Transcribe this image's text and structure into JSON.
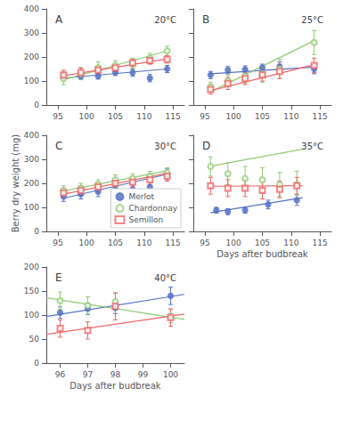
{
  "chart_data": [
    {
      "type": "scatter",
      "title": "A",
      "subtitle": "20°C",
      "xlim": [
        93,
        117
      ],
      "ylim": [
        0,
        400
      ],
      "xticks": [
        95,
        100,
        105,
        110,
        115
      ],
      "yticks": [
        0,
        100,
        200,
        300,
        400
      ],
      "grid": false,
      "series": [
        {
          "name": "Merlot",
          "marker": "filled circle",
          "x": [
            96,
            99,
            102,
            105,
            108,
            111,
            114
          ],
          "values": [
            120,
            120,
            120,
            135,
            135,
            112,
            150
          ],
          "yerr": [
            15,
            12,
            12,
            12,
            15,
            15,
            15
          ],
          "fit": {
            "x": [
              96,
              114
            ],
            "values": [
              112,
              150
            ]
          }
        },
        {
          "name": "Chardonnay",
          "marker": "open circle",
          "x": [
            96,
            99,
            102,
            105,
            108,
            111,
            114
          ],
          "values": [
            110,
            130,
            155,
            165,
            175,
            195,
            225
          ],
          "yerr": [
            25,
            25,
            25,
            20,
            20,
            20,
            20
          ],
          "fit": {
            "x": [
              96,
              114
            ],
            "values": [
              105,
              225
            ]
          }
        },
        {
          "name": "Semillon",
          "marker": "open square",
          "x": [
            96,
            99,
            102,
            105,
            108,
            111,
            114
          ],
          "values": [
            125,
            135,
            145,
            155,
            175,
            185,
            190
          ],
          "yerr": [
            20,
            20,
            15,
            15,
            15,
            15,
            15
          ],
          "fit": {
            "x": [
              96,
              114
            ],
            "values": [
              122,
              192
            ]
          }
        }
      ]
    },
    {
      "type": "scatter",
      "title": "B",
      "subtitle": "25°C",
      "xlim": [
        93,
        117
      ],
      "ylim": [
        0,
        400
      ],
      "xticks": [
        95,
        100,
        105,
        110,
        115
      ],
      "yticks": [
        0,
        100,
        200,
        300,
        400
      ],
      "grid": false,
      "tick_labels": "x",
      "series": [
        {
          "name": "Merlot",
          "marker": "filled circle",
          "x": [
            96,
            99,
            102,
            105,
            108,
            114
          ],
          "values": [
            125,
            145,
            148,
            155,
            160,
            150
          ],
          "yerr": [
            15,
            15,
            15,
            15,
            20,
            20
          ],
          "fit": {
            "x": [
              96,
              114
            ],
            "values": [
              130,
              158
            ]
          }
        },
        {
          "name": "Chardonnay",
          "marker": "open circle",
          "x": [
            96,
            99,
            102,
            105,
            108,
            114
          ],
          "values": [
            75,
            100,
            120,
            130,
            150,
            260
          ],
          "yerr": [
            20,
            25,
            30,
            35,
            40,
            50
          ],
          "fit": {
            "x": [
              96,
              114
            ],
            "values": [
              55,
              268
            ]
          }
        },
        {
          "name": "Semillon",
          "marker": "open square",
          "x": [
            96,
            99,
            102,
            105,
            108,
            114
          ],
          "values": [
            65,
            90,
            110,
            125,
            140,
            165
          ],
          "yerr": [
            20,
            25,
            25,
            25,
            30,
            30
          ],
          "fit": {
            "x": [
              96,
              114
            ],
            "values": [
              60,
              168
            ]
          }
        }
      ]
    },
    {
      "type": "scatter",
      "title": "C",
      "subtitle": "30°C",
      "ylabel": "Berry dry weight (mg)",
      "xlim": [
        93,
        117
      ],
      "ylim": [
        0,
        400
      ],
      "xticks": [
        95,
        100,
        105,
        110,
        115
      ],
      "yticks": [
        0,
        100,
        200,
        300,
        400
      ],
      "grid": false,
      "legend": "lower right",
      "series": [
        {
          "name": "Merlot",
          "marker": "filled circle",
          "x": [
            96,
            99,
            102,
            105,
            108,
            111,
            114
          ],
          "values": [
            145,
            155,
            165,
            175,
            175,
            185,
            235
          ],
          "yerr": [
            20,
            20,
            20,
            20,
            20,
            25,
            25
          ],
          "fit": {
            "x": [
              96,
              114
            ],
            "values": [
              138,
              238
            ]
          }
        },
        {
          "name": "Chardonnay",
          "marker": "open circle",
          "x": [
            96,
            99,
            102,
            105,
            108,
            111,
            114
          ],
          "values": [
            170,
            180,
            195,
            215,
            220,
            230,
            245
          ],
          "yerr": [
            20,
            20,
            20,
            20,
            20,
            20,
            20
          ],
          "fit": {
            "x": [
              96,
              114
            ],
            "values": [
              168,
              252
            ]
          }
        },
        {
          "name": "Semillon",
          "marker": "open square",
          "x": [
            96,
            99,
            102,
            105,
            108,
            111,
            114
          ],
          "values": [
            160,
            170,
            185,
            200,
            205,
            215,
            230
          ],
          "yerr": [
            20,
            20,
            20,
            20,
            20,
            20,
            20
          ],
          "fit": {
            "x": [
              96,
              114
            ],
            "values": [
              155,
              242
            ]
          }
        }
      ]
    },
    {
      "type": "scatter",
      "title": "D",
      "subtitle": "35°C",
      "xlabel": "Days after budbreak",
      "xlim": [
        93,
        117
      ],
      "ylim": [
        0,
        400
      ],
      "xticks": [
        95,
        100,
        105,
        110,
        115
      ],
      "yticks": [
        0,
        100,
        200,
        300,
        400
      ],
      "grid": false,
      "tick_labels": "x",
      "series": [
        {
          "name": "Merlot",
          "marker": "filled circle",
          "x": [
            97,
            99,
            102,
            106,
            111
          ],
          "values": [
            88,
            82,
            88,
            112,
            130
          ],
          "yerr": [
            12,
            12,
            12,
            18,
            22
          ],
          "fit": {
            "x": [
              96,
              112
            ],
            "values": [
              78,
              140
            ]
          }
        },
        {
          "name": "Chardonnay",
          "marker": "open circle",
          "x": [
            96,
            99,
            102,
            105,
            108,
            111
          ],
          "values": [
            270,
            240,
            220,
            215,
            195,
            195
          ],
          "yerr": [
            40,
            45,
            50,
            50,
            50,
            55
          ],
          "fit": {
            "x": [
              96,
              112
            ],
            "values": [
              272,
              342
            ]
          }
        },
        {
          "name": "Semillon",
          "marker": "open square",
          "x": [
            96,
            99,
            102,
            105,
            108,
            111
          ],
          "values": [
            190,
            180,
            180,
            170,
            175,
            190
          ],
          "yerr": [
            35,
            35,
            35,
            35,
            35,
            35
          ],
          "fit": {
            "x": [
              96,
              112
            ],
            "values": [
              188,
              190
            ]
          }
        }
      ]
    },
    {
      "type": "scatter",
      "title": "E",
      "subtitle": "40°C",
      "xlabel": "Days after budbreak",
      "xlim": [
        95.5,
        100.5
      ],
      "ylim": [
        0,
        200
      ],
      "xticks": [
        96,
        97,
        98,
        99,
        100
      ],
      "yticks": [
        0,
        50,
        100,
        150,
        200
      ],
      "grid": false,
      "series": [
        {
          "name": "Merlot",
          "marker": "filled circle",
          "x": [
            96,
            97,
            98,
            100
          ],
          "values": [
            105,
            113,
            115,
            140
          ],
          "yerr": [
            12,
            12,
            12,
            18
          ],
          "fit": {
            "x": [
              95.5,
              100.5
            ],
            "values": [
              97,
              143
            ]
          }
        },
        {
          "name": "Chardonnay",
          "marker": "open circle",
          "x": [
            96,
            97,
            98,
            100
          ],
          "values": [
            130,
            120,
            128,
            98
          ],
          "yerr": [
            18,
            18,
            18,
            14
          ],
          "fit": {
            "x": [
              95.5,
              100.5
            ],
            "values": [
              136,
              91
            ]
          }
        },
        {
          "name": "Semillon",
          "marker": "open square",
          "x": [
            96,
            97,
            98,
            100
          ],
          "values": [
            72,
            68,
            118,
            95
          ],
          "yerr": [
            18,
            18,
            28,
            18
          ],
          "fit": {
            "x": [
              95.5,
              100.5
            ],
            "values": [
              60,
              102
            ]
          }
        }
      ]
    }
  ]
}
